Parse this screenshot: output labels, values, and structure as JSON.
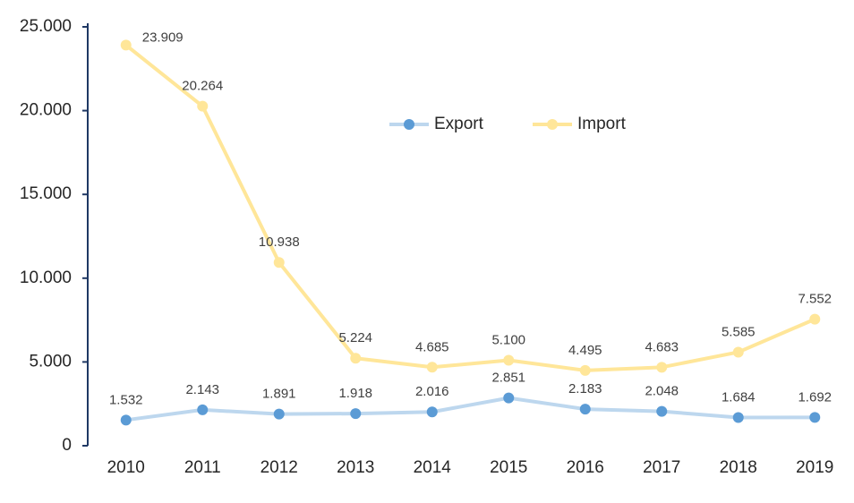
{
  "chart_data": {
    "type": "line",
    "categories": [
      "2010",
      "2011",
      "2012",
      "2013",
      "2014",
      "2015",
      "2016",
      "2017",
      "2018",
      "2019"
    ],
    "series": [
      {
        "name": "Export",
        "color": "#5b9bd5",
        "line_color": "#bdd7ee",
        "values": [
          1532,
          2143,
          1891,
          1918,
          2016,
          2851,
          2183,
          2048,
          1684,
          1692
        ],
        "value_labels": [
          "1.532",
          "2.143",
          "1.891",
          "1.918",
          "2.016",
          "2.851",
          "2.183",
          "2.048",
          "1.684",
          "1.692"
        ]
      },
      {
        "name": "Import",
        "color": "#ffe699",
        "line_color": "#ffe699",
        "values": [
          23909,
          20264,
          10938,
          5224,
          4685,
          5100,
          4495,
          4683,
          5585,
          7552
        ],
        "value_labels": [
          "23.909",
          "20.264",
          "10.938",
          "5.224",
          "4.685",
          "5.100",
          "4.495",
          "4.683",
          "5.585",
          "7.552"
        ]
      }
    ],
    "ylim": [
      0,
      25000
    ],
    "yticks": [
      0,
      {
        "value": 5000,
        "label": "5.000"
      },
      {
        "value": 10000,
        "label": "10.000"
      },
      {
        "value": 15000,
        "label": "15.000"
      },
      {
        "value": 20000,
        "label": "20.000"
      },
      {
        "value": 25000,
        "label": "25.000"
      }
    ],
    "grid": false
  }
}
